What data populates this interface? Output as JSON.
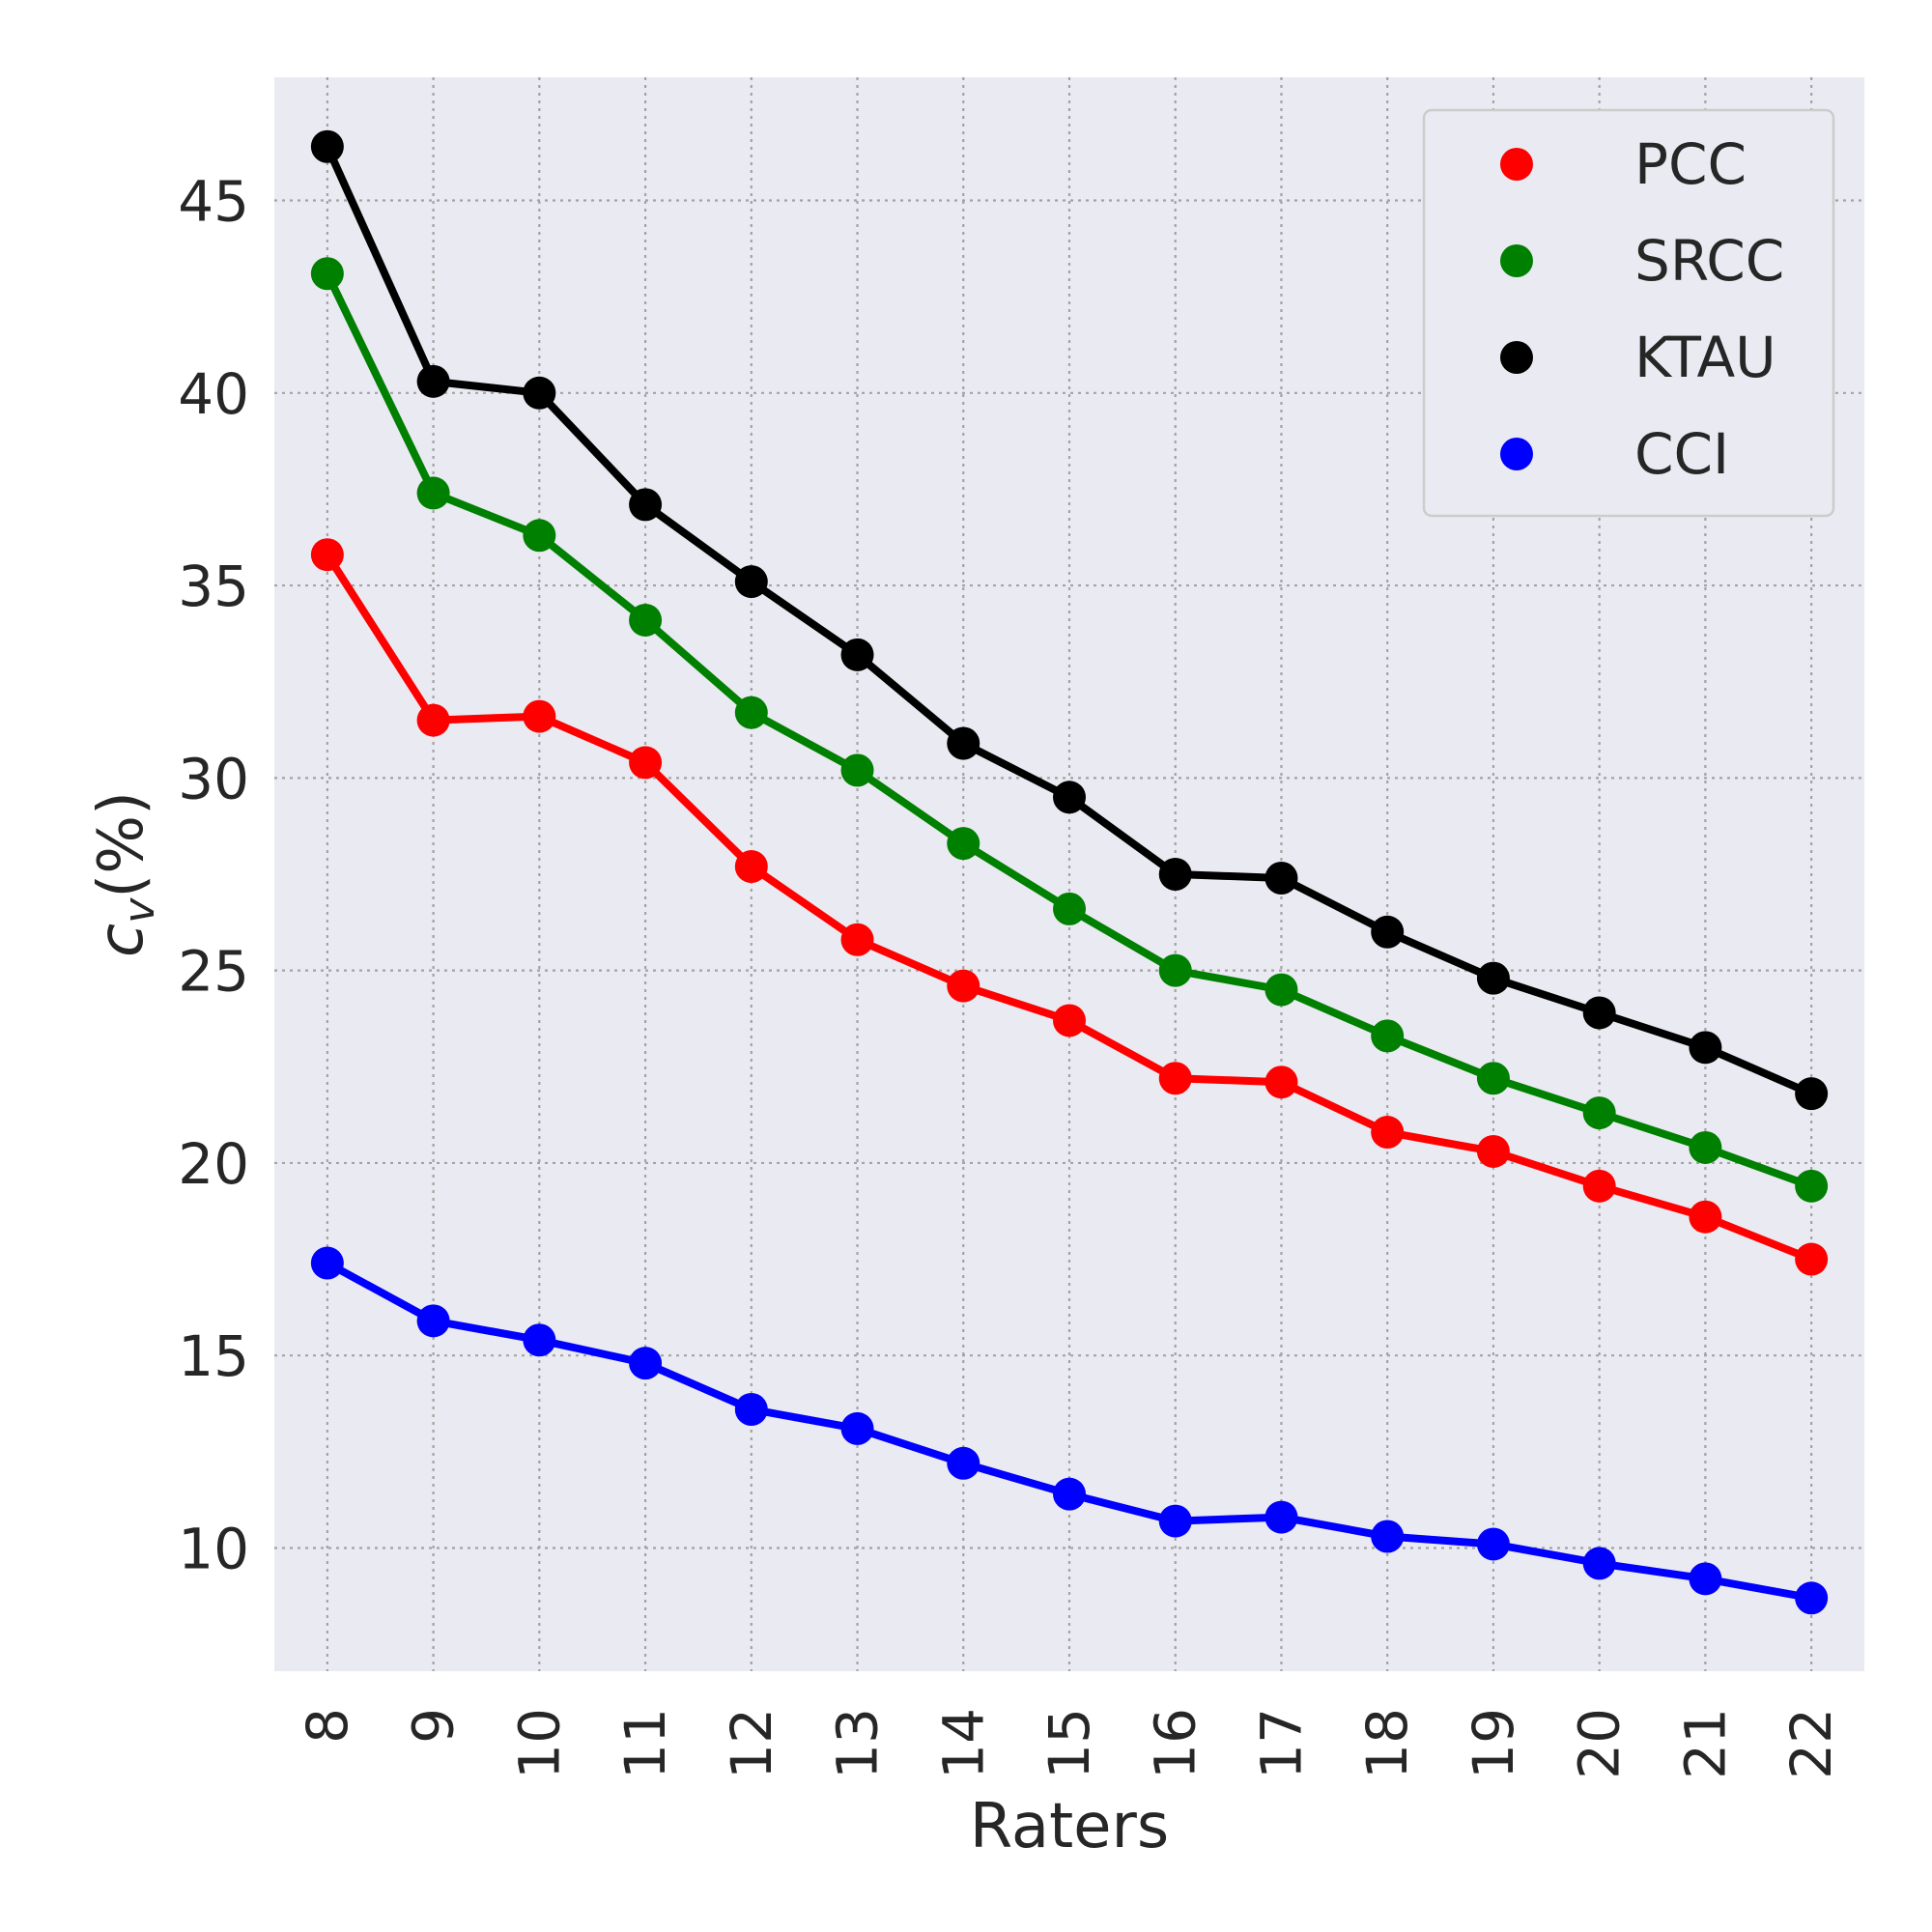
{
  "chart_data": {
    "type": "line",
    "xlabel": "Raters",
    "ylabel": "c_v(%)",
    "ylabel_parts": {
      "symbol": "c",
      "subscript": "v",
      "suffix": "(%)"
    },
    "x": [
      8,
      9,
      10,
      11,
      12,
      13,
      14,
      15,
      16,
      17,
      18,
      19,
      20,
      21,
      22
    ],
    "x_tick_labels": [
      "8",
      "9",
      "10",
      "11",
      "12",
      "13",
      "14",
      "15",
      "16",
      "17",
      "18",
      "19",
      "20",
      "21",
      "22"
    ],
    "y_ticks": [
      10,
      15,
      20,
      25,
      30,
      35,
      40,
      45
    ],
    "y_tick_labels": [
      "10",
      "15",
      "20",
      "25",
      "30",
      "35",
      "40",
      "45"
    ],
    "xlim": [
      7.5,
      22.5
    ],
    "ylim": [
      6.8,
      48.2
    ],
    "grid": true,
    "legend": "top-right",
    "background": "#eaeaf2",
    "series": [
      {
        "name": "PCC",
        "color": "#ff0000",
        "values": [
          35.8,
          31.5,
          31.6,
          30.4,
          27.7,
          25.8,
          24.6,
          23.7,
          22.2,
          22.1,
          20.8,
          20.3,
          19.4,
          18.6,
          17.5
        ]
      },
      {
        "name": "SRCC",
        "color": "#008000",
        "values": [
          43.1,
          37.4,
          36.3,
          34.1,
          31.7,
          30.2,
          28.3,
          26.6,
          25.0,
          24.5,
          23.3,
          22.2,
          21.3,
          20.4,
          19.4
        ]
      },
      {
        "name": "KTAU",
        "color": "#000000",
        "values": [
          46.4,
          40.3,
          40.0,
          37.1,
          35.1,
          33.2,
          30.9,
          29.5,
          27.5,
          27.4,
          26.0,
          24.8,
          23.9,
          23.0,
          21.8
        ]
      },
      {
        "name": "CCI",
        "color": "#0000ff",
        "values": [
          17.4,
          15.9,
          15.4,
          14.8,
          13.6,
          13.1,
          12.2,
          11.4,
          10.7,
          10.8,
          10.3,
          10.1,
          9.6,
          9.2,
          8.7
        ]
      }
    ]
  }
}
